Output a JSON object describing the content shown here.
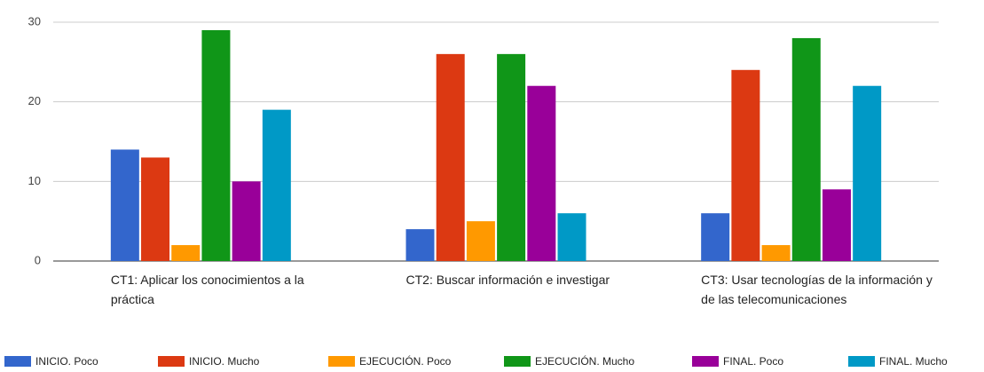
{
  "chart_data": {
    "type": "bar",
    "categories": [
      "CT1: Aplicar los conocimientos a la práctica",
      "CT2: Buscar información e investigar",
      "CT3: Usar tecnologías de la información y de las telecomunicaciones"
    ],
    "series": [
      {
        "name": "INICIO. Poco",
        "color": "#3366cc",
        "values": [
          14,
          4,
          6
        ]
      },
      {
        "name": "INICIO. Mucho",
        "color": "#dc3912",
        "values": [
          13,
          26,
          24
        ]
      },
      {
        "name": "EJECUCIÓN. Poco",
        "color": "#ff9900",
        "values": [
          2,
          5,
          2
        ]
      },
      {
        "name": "EJECUCIÓN. Mucho",
        "color": "#109618",
        "values": [
          29,
          26,
          28
        ]
      },
      {
        "name": "FINAL. Poco",
        "color": "#990099",
        "values": [
          10,
          22,
          9
        ]
      },
      {
        "name": "FINAL. Mucho",
        "color": "#0099c6",
        "values": [
          19,
          6,
          22
        ]
      }
    ],
    "ylim": [
      0,
      30
    ],
    "yticks": [
      0,
      10,
      20,
      30
    ],
    "grid": true,
    "legend": "bottom"
  }
}
